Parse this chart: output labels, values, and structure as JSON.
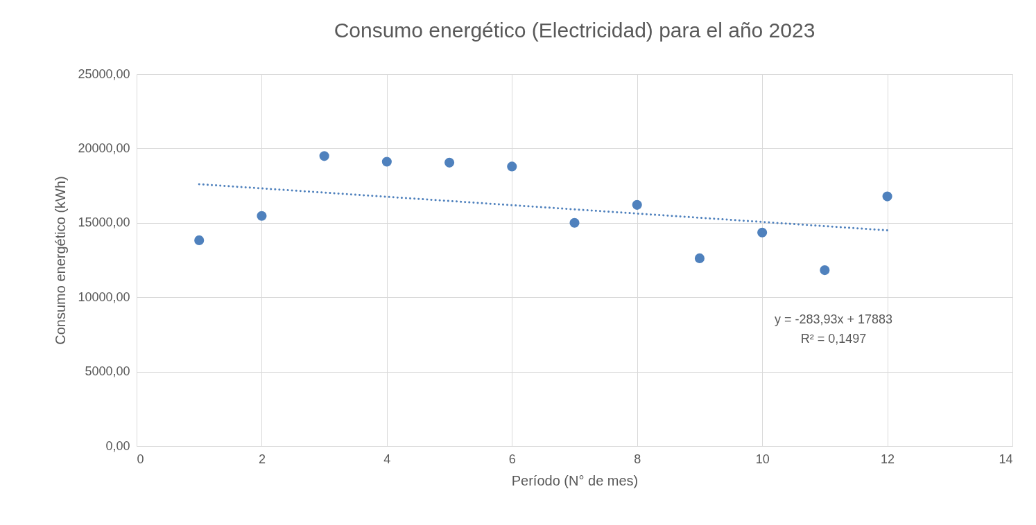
{
  "chart_data": {
    "type": "scatter",
    "title": "Consumo energético (Electricidad) para el año 2023",
    "xlabel": "Período (N° de mes)",
    "ylabel": "Consumo energético (kWh)",
    "xlim": [
      0,
      14
    ],
    "xticks": [
      0,
      2,
      4,
      6,
      8,
      10,
      12,
      14
    ],
    "ylim": [
      0,
      25000
    ],
    "yticks": [
      {
        "value": 0,
        "label": "0,00"
      },
      {
        "value": 5000,
        "label": "5000,00"
      },
      {
        "value": 10000,
        "label": "10000,00"
      },
      {
        "value": 15000,
        "label": "15000,00"
      },
      {
        "value": 20000,
        "label": "20000,00"
      },
      {
        "value": 25000,
        "label": "25000,00"
      }
    ],
    "grid": true,
    "marker": "circle",
    "series": [
      {
        "color": "#4f81bd",
        "x": [
          1,
          2,
          3,
          4,
          5,
          6,
          7,
          8,
          9,
          10,
          11,
          12
        ],
        "values": [
          13830,
          15470,
          19490,
          19110,
          19050,
          18790,
          15000,
          16210,
          12620,
          14350,
          11820,
          16780
        ]
      },
      {
        "type": "line",
        "color": "#4f81bd",
        "line_style": "dotted",
        "marker": "none",
        "x": [
          1,
          12
        ],
        "values": [
          17600,
          14500
        ]
      }
    ],
    "annotations": [
      "y = -283,93x + 17883",
      "R² = 0,1497"
    ]
  }
}
